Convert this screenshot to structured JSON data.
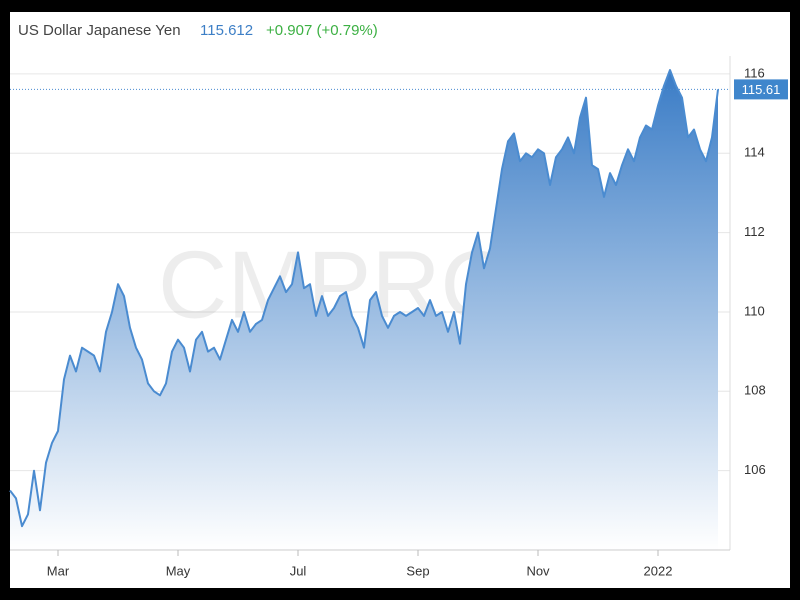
{
  "chart_data": {
    "type": "area",
    "title": "US Dollar Japanese Yen",
    "price": "115.612",
    "change": "+0.907 (+0.79%)",
    "watermark": "CMPRO.IR",
    "color": "#4a8bd0",
    "price_line": 115.61,
    "categories": [
      null,
      null,
      null,
      null,
      null,
      null,
      null,
      null,
      "Mar",
      null,
      null,
      null,
      null,
      null,
      null,
      null,
      null,
      null,
      null,
      null,
      null,
      null,
      null,
      null,
      null,
      null,
      null,
      null,
      "May",
      null,
      null,
      null,
      null,
      null,
      null,
      null,
      null,
      null,
      null,
      null,
      null,
      null,
      null,
      null,
      null,
      null,
      null,
      null,
      "Jul",
      null,
      null,
      null,
      null,
      null,
      null,
      null,
      null,
      null,
      null,
      null,
      null,
      null,
      null,
      null,
      null,
      null,
      null,
      null,
      "Sep",
      null,
      null,
      null,
      null,
      null,
      null,
      null,
      null,
      null,
      null,
      null,
      null,
      null,
      null,
      null,
      null,
      null,
      null,
      null,
      "Nov",
      null,
      null,
      null,
      null,
      null,
      null,
      null,
      null,
      null,
      null,
      null,
      null,
      null,
      null,
      null,
      null,
      null,
      null,
      null,
      "2022",
      null,
      null,
      null,
      null,
      null,
      null,
      null,
      null,
      null,
      null
    ],
    "values": [
      105.5,
      105.3,
      104.6,
      104.9,
      106.0,
      105.0,
      106.2,
      106.7,
      107.0,
      108.3,
      108.9,
      108.5,
      109.1,
      109.0,
      108.9,
      108.5,
      109.5,
      110.0,
      110.7,
      110.4,
      109.6,
      109.1,
      108.8,
      108.2,
      108.0,
      107.9,
      108.2,
      109.0,
      109.3,
      109.1,
      108.5,
      109.3,
      109.5,
      109.0,
      109.1,
      108.8,
      109.3,
      109.8,
      109.5,
      110.0,
      109.5,
      109.7,
      109.8,
      110.3,
      110.6,
      110.9,
      110.5,
      110.7,
      111.5,
      110.6,
      110.7,
      109.9,
      110.4,
      109.9,
      110.1,
      110.4,
      110.5,
      109.9,
      109.6,
      109.1,
      110.3,
      110.5,
      109.9,
      109.6,
      109.9,
      110.0,
      109.9,
      110.0,
      110.1,
      109.9,
      110.3,
      109.9,
      110.0,
      109.5,
      110.0,
      109.2,
      110.7,
      111.5,
      112.0,
      111.1,
      111.6,
      112.6,
      113.6,
      114.3,
      114.5,
      113.8,
      114.0,
      113.9,
      114.1,
      114.0,
      113.2,
      113.9,
      114.1,
      114.4,
      114.0,
      114.9,
      115.4,
      113.7,
      113.6,
      112.9,
      113.5,
      113.2,
      113.7,
      114.1,
      113.8,
      114.4,
      114.7,
      114.6,
      115.2,
      115.7,
      116.1,
      115.7,
      115.4,
      114.4,
      114.6,
      114.1,
      113.8,
      114.4,
      115.61
    ],
    "ylim": [
      104,
      116.25
    ],
    "yticks": [
      106,
      108,
      110,
      112,
      114,
      116
    ],
    "grid": true
  }
}
